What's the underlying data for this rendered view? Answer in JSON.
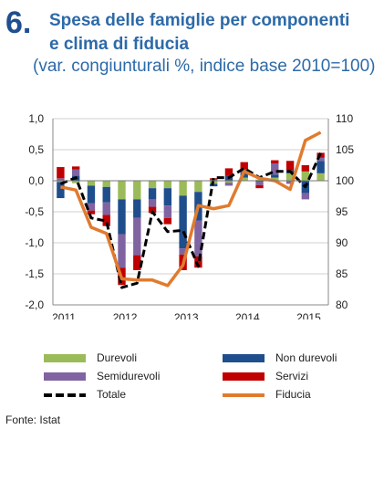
{
  "header": {
    "number": "6.",
    "title_line1": "Spesa delle famiglie per componenti",
    "title_line2": "e clima di fiducia",
    "subtitle": "(var. congiunturali %, indice base 2010=100)"
  },
  "chart_data": {
    "type": "bar",
    "x_labels": [
      "2011",
      "2012",
      "2013",
      "2014",
      "2015"
    ],
    "y_left_ticks": [
      "1,0",
      "0,5",
      "0,0",
      "-0,5",
      "-1,0",
      "-1,5",
      "-2,0"
    ],
    "y_right_ticks": [
      "110",
      "105",
      "100",
      "95",
      "90",
      "85",
      "80"
    ],
    "ylim_left": [
      -2.0,
      1.0
    ],
    "ylim_right": [
      80,
      110
    ],
    "quarters": [
      "2011T1",
      "2011T2",
      "2011T3",
      "2011T4",
      "2012T1",
      "2012T2",
      "2012T3",
      "2012T4",
      "2013T1",
      "2013T2",
      "2013T3",
      "2013T4",
      "2014T1",
      "2014T2",
      "2014T3",
      "2014T4",
      "2015T1",
      "2015T2"
    ],
    "series": [
      {
        "name": "Durevoli",
        "axis": "left",
        "kind": "bar",
        "color": "#9bbb59",
        "values": [
          -0.02,
          -0.04,
          -0.08,
          -0.1,
          -0.3,
          -0.3,
          -0.12,
          -0.12,
          -0.24,
          -0.18,
          -0.05,
          -0.03,
          0.05,
          0.02,
          0.05,
          0.12,
          0.15,
          0.12
        ]
      },
      {
        "name": "Non durevoli",
        "axis": "left",
        "kind": "bar",
        "color": "#1f4e8c",
        "values": [
          -0.26,
          0.08,
          -0.28,
          -0.25,
          -0.56,
          -0.3,
          -0.18,
          -0.28,
          -0.85,
          -0.46,
          -0.04,
          0.08,
          0.08,
          -0.02,
          0.05,
          0.05,
          -0.2,
          0.2
        ]
      },
      {
        "name": "Semidurevoli",
        "axis": "left",
        "kind": "bar",
        "color": "#8064a2",
        "values": [
          0.04,
          0.1,
          -0.12,
          -0.2,
          -0.54,
          -0.6,
          -0.12,
          -0.2,
          -0.1,
          -0.58,
          0.02,
          -0.05,
          0.05,
          -0.05,
          0.18,
          -0.05,
          -0.1,
          0.05
        ]
      },
      {
        "name": "Servizi",
        "axis": "left",
        "kind": "bar",
        "color": "#c00000",
        "values": [
          0.18,
          0.05,
          -0.06,
          -0.18,
          -0.28,
          -0.24,
          -0.1,
          -0.1,
          -0.25,
          -0.18,
          0.02,
          0.12,
          0.12,
          -0.05,
          0.05,
          0.15,
          0.1,
          0.08
        ]
      },
      {
        "name": "Totale",
        "axis": "left",
        "kind": "line-dashed",
        "color": "#000000",
        "values": [
          -0.05,
          0.05,
          -0.6,
          -0.65,
          -1.72,
          -1.65,
          -0.5,
          -0.82,
          -0.8,
          -1.38,
          0.05,
          0.05,
          0.2,
          0.05,
          0.15,
          0.15,
          -0.1,
          0.45
        ]
      },
      {
        "name": "Fiducia",
        "axis": "right",
        "kind": "line",
        "color": "#e07b2e",
        "values": [
          99.0,
          98.5,
          92.5,
          91.5,
          84.2,
          84.0,
          84.0,
          83.1,
          86.4,
          96.0,
          95.5,
          96.0,
          101.5,
          100.4,
          100.0,
          98.6,
          106.5,
          107.8
        ]
      }
    ]
  },
  "legend": {
    "items": [
      {
        "label": "Durevoli",
        "color": "#9bbb59"
      },
      {
        "label": "Non durevoli",
        "color": "#1f4e8c"
      },
      {
        "label": "Semidurevoli",
        "color": "#8064a2"
      },
      {
        "label": "Servizi",
        "color": "#c00000"
      },
      {
        "label": "Totale",
        "color": "#000000"
      },
      {
        "label": "Fiducia",
        "color": "#e07b2e"
      }
    ]
  },
  "source": "Fonte: Istat"
}
